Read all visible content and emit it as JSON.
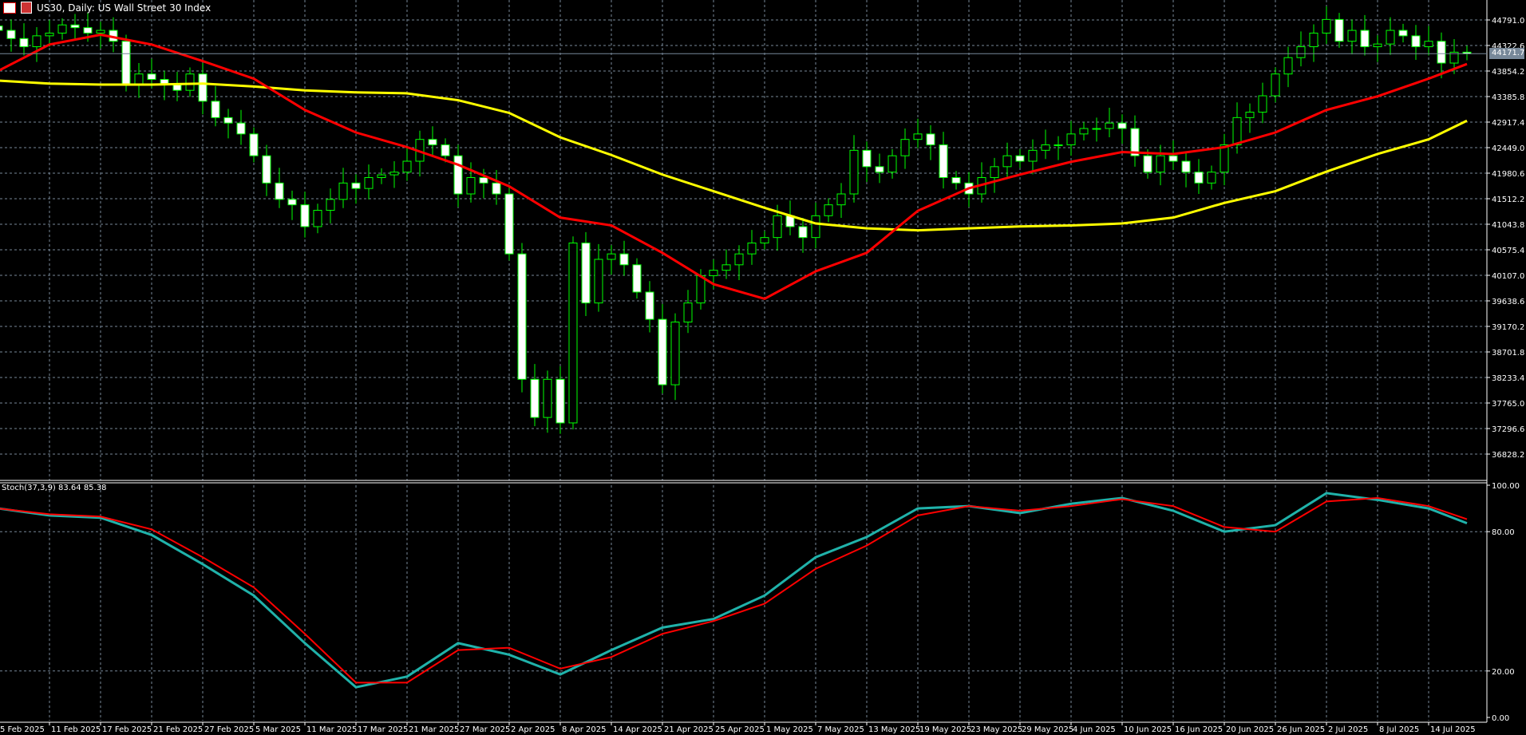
{
  "window": {
    "title": "US30, Daily:  US Wall Street 30 Index"
  },
  "indicator": {
    "label": "Stoch(37,3,9) 83.64 85.38"
  },
  "current_price": "44171.7",
  "colors": {
    "background": "#000000",
    "grid": "#778899",
    "candle_outline": "#00ff00",
    "bear_body": "#ffffff",
    "bull_body": "#000000",
    "ma_fast": "#ff0000",
    "ma_slow": "#ffff00",
    "stoch_main": "#20b2aa",
    "stoch_signal": "#ff0000",
    "price_tag": "#778899"
  },
  "chart_data": [
    {
      "type": "candlestick",
      "title": "US30, Daily:  US Wall Street 30 Index",
      "y_ticks": [
        "44791.0",
        "44322.6",
        "43854.2",
        "43385.8",
        "42917.4",
        "42449.0",
        "41980.6",
        "41512.2",
        "41043.8",
        "40575.4",
        "40107.0",
        "39638.6",
        "39170.2",
        "38701.8",
        "38233.4",
        "37765.0",
        "37296.6",
        "36828.2"
      ],
      "x_tick_labels": [
        "5 Feb 2025",
        "11 Feb 2025",
        "17 Feb 2025",
        "21 Feb 2025",
        "27 Feb 2025",
        "5 Mar 2025",
        "11 Mar 2025",
        "17 Mar 2025",
        "21 Mar 2025",
        "27 Mar 2025",
        "2 Apr 2025",
        "8 Apr 2025",
        "14 Apr 2025",
        "21 Apr 2025",
        "25 Apr 2025",
        "1 May 2025",
        "7 May 2025",
        "13 May 2025",
        "19 May 2025",
        "23 May 2025",
        "29 May 2025",
        "4 Jun 2025",
        "10 Jun 2025",
        "16 Jun 2025",
        "20 Jun 2025",
        "26 Jun 2025",
        "2 Jul 2025",
        "8 Jul 2025",
        "14 Jul 2025"
      ],
      "close": [
        44600,
        44450,
        44300,
        44500,
        44550,
        44700,
        44650,
        44550,
        44600,
        44400,
        43600,
        43800,
        43700,
        43600,
        43500,
        43800,
        43300,
        43000,
        42900,
        42700,
        42300,
        41800,
        41500,
        41400,
        41000,
        41300,
        41500,
        41800,
        41700,
        41900,
        41950,
        42000,
        42200,
        42600,
        42500,
        42300,
        41600,
        41900,
        41800,
        41600,
        40500,
        38200,
        37500,
        38200,
        37400,
        40700,
        39600,
        40400,
        40500,
        40300,
        39800,
        39300,
        38100,
        39250,
        39600,
        40100,
        40200,
        40300,
        40500,
        40700,
        40800,
        41200,
        41000,
        40800,
        41200,
        41400,
        41600,
        42400,
        42100,
        42000,
        42300,
        42600,
        42700,
        42500,
        41900,
        41800,
        41600,
        41900,
        42100,
        42300,
        42200,
        42400,
        42500,
        42500,
        42700,
        42800,
        42800,
        42900,
        42800,
        42300,
        42000,
        42300,
        42200,
        42000,
        41800,
        42000,
        42500,
        43000,
        43100,
        43400,
        43800,
        44100,
        44300,
        44550,
        44800,
        44400,
        44600,
        44300,
        44350,
        44600,
        44500,
        44300,
        44400,
        44000,
        44200,
        44171.7
      ],
      "ma_fast_at_labels": [
        43858,
        44340,
        44520,
        44340,
        44037,
        43714,
        43140,
        42727,
        42458,
        42135,
        41740,
        41166,
        41022,
        40520,
        39945,
        39676,
        40180,
        40520,
        41290,
        41704,
        41955,
        42189,
        42368,
        42332,
        42458,
        42727,
        43140,
        43391,
        43714
      ],
      "ma_fast_last": 43983,
      "ma_slow_at_labels": [
        43678,
        43624,
        43606,
        43606,
        43624,
        43570,
        43499,
        43463,
        43445,
        43319,
        43086,
        42637,
        42314,
        41955,
        41650,
        41345,
        41058,
        40969,
        40933,
        40969,
        41004,
        41022,
        41058,
        41166,
        41435,
        41650,
        42009,
        42332,
        42601
      ],
      "ma_slow_last": 42943
    },
    {
      "type": "line",
      "title": "Stoch(37,3,9) 83.64 85.38",
      "y_ticks": [
        "100.00",
        "80.00",
        "20.00",
        "0.00"
      ],
      "ylim": [
        0,
        100
      ],
      "main_at_labels": [
        90,
        87,
        86,
        78.6,
        66,
        52.5,
        32,
        13,
        17.6,
        32,
        27,
        18.5,
        29,
        38.7,
        42.4,
        52.5,
        69,
        77.7,
        90,
        91,
        88,
        92,
        94.5,
        89,
        80,
        82.8,
        96.6,
        93.7,
        90
      ],
      "main_last": 83.64,
      "signal_at_labels": [
        90,
        87.5,
        86.5,
        81,
        69,
        56,
        36,
        15,
        15,
        29,
        30,
        21,
        26,
        36,
        41.5,
        49,
        64,
        74,
        87,
        91,
        89,
        91,
        94,
        91,
        82,
        80,
        93,
        94.5,
        91
      ],
      "signal_last": 85.38
    }
  ]
}
